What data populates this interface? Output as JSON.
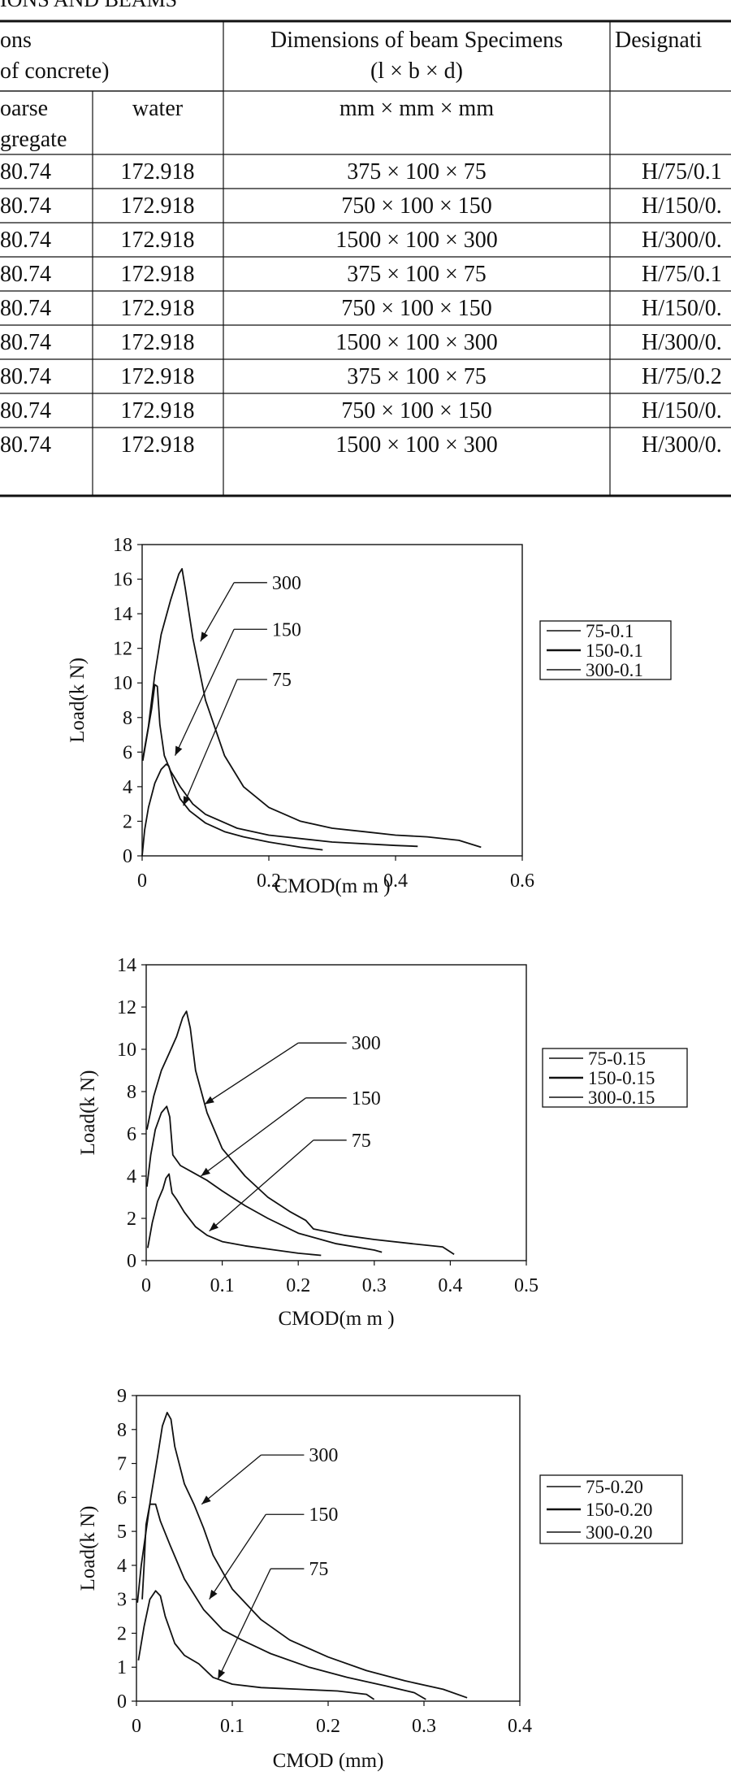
{
  "table": {
    "caption": "IONS AND BEAMS",
    "header1": {
      "proportions_a": "ons",
      "proportions_b": "of concrete)",
      "dimensions_a": "Dimensions of beam Specimens",
      "dimensions_b": "(l × b × d)",
      "designation": "Designati"
    },
    "header2": {
      "coarse_a": "oarse",
      "coarse_b": "gregate",
      "water": "water",
      "units": "mm × mm × mm"
    },
    "rows": [
      {
        "coarse": "80.74",
        "water": "172.918",
        "dims": "375 × 100 × 75",
        "designation": "H/75/0.1"
      },
      {
        "coarse": "80.74",
        "water": "172.918",
        "dims": "750 × 100 × 150",
        "designation": "H/150/0."
      },
      {
        "coarse": "80.74",
        "water": "172.918",
        "dims": "1500 × 100 × 300",
        "designation": "H/300/0."
      },
      {
        "coarse": "80.74",
        "water": "172.918",
        "dims": "375 × 100 × 75",
        "designation": "H/75/0.1"
      },
      {
        "coarse": "80.74",
        "water": "172.918",
        "dims": "750 × 100 × 150",
        "designation": "H/150/0."
      },
      {
        "coarse": "80.74",
        "water": "172.918",
        "dims": "1500 × 100 × 300",
        "designation": "H/300/0."
      },
      {
        "coarse": "80.74",
        "water": "172.918",
        "dims": "375 × 100 × 75",
        "designation": "H/75/0.2"
      },
      {
        "coarse": "80.74",
        "water": "172.918",
        "dims": "750 × 100 × 150",
        "designation": "H/150/0."
      },
      {
        "coarse": "80.74",
        "water": "172.918",
        "dims": "1500 × 100 × 300",
        "designation": "H/300/0."
      }
    ]
  },
  "chart_data": [
    {
      "type": "line",
      "xlabel": "CMOD(m m )",
      "ylabel": "Load(k N)",
      "xlim": [
        0,
        0.6
      ],
      "ylim": [
        0,
        18
      ],
      "xticks": [
        "0",
        "0.2",
        "0.4",
        "0.6"
      ],
      "yticks": [
        "0",
        "2",
        "4",
        "6",
        "8",
        "10",
        "12",
        "14",
        "16",
        "18"
      ],
      "grid": false,
      "legend_position": "right",
      "legend": [
        "75-0.1",
        "150-0.1",
        "300-0.1"
      ],
      "annotations": [
        {
          "text": "300",
          "target": [
            0.092,
            12.4
          ]
        },
        {
          "text": "150",
          "target": [
            0.052,
            5.8
          ]
        },
        {
          "text": "75",
          "target": [
            0.065,
            2.9
          ]
        }
      ],
      "series": [
        {
          "points": [
            [
              0,
              0
            ],
            [
              0.004,
              1.5
            ],
            [
              0.01,
              2.8
            ],
            [
              0.02,
              4.2
            ],
            [
              0.03,
              5.0
            ],
            [
              0.038,
              5.3
            ],
            [
              0.042,
              5.2
            ],
            [
              0.05,
              4.2
            ],
            [
              0.06,
              3.3
            ],
            [
              0.075,
              2.6
            ],
            [
              0.1,
              1.9
            ],
            [
              0.13,
              1.4
            ],
            [
              0.16,
              1.1
            ],
            [
              0.2,
              0.8
            ],
            [
              0.25,
              0.5
            ],
            [
              0.285,
              0.35
            ]
          ]
        },
        {
          "points": [
            [
              0.001,
              5.5
            ],
            [
              0.008,
              7.0
            ],
            [
              0.015,
              8.5
            ],
            [
              0.02,
              9.9
            ],
            [
              0.024,
              9.8
            ],
            [
              0.028,
              7.6
            ],
            [
              0.035,
              5.8
            ],
            [
              0.045,
              4.9
            ],
            [
              0.06,
              4.0
            ],
            [
              0.08,
              3.0
            ],
            [
              0.1,
              2.4
            ],
            [
              0.15,
              1.6
            ],
            [
              0.2,
              1.2
            ],
            [
              0.3,
              0.8
            ],
            [
              0.4,
              0.6
            ],
            [
              0.435,
              0.55
            ]
          ]
        },
        {
          "points": [
            [
              0.001,
              5.6
            ],
            [
              0.01,
              7.5
            ],
            [
              0.02,
              10.5
            ],
            [
              0.03,
              12.8
            ],
            [
              0.045,
              14.8
            ],
            [
              0.058,
              16.3
            ],
            [
              0.063,
              16.6
            ],
            [
              0.068,
              15.5
            ],
            [
              0.08,
              12.6
            ],
            [
              0.1,
              9.0
            ],
            [
              0.13,
              5.8
            ],
            [
              0.16,
              4.0
            ],
            [
              0.2,
              2.8
            ],
            [
              0.25,
              2.0
            ],
            [
              0.3,
              1.6
            ],
            [
              0.35,
              1.4
            ],
            [
              0.4,
              1.2
            ],
            [
              0.45,
              1.1
            ],
            [
              0.5,
              0.9
            ],
            [
              0.535,
              0.5
            ]
          ]
        }
      ]
    },
    {
      "type": "line",
      "xlabel": "CMOD(m m )",
      "ylabel": "Load(k N)",
      "xlim": [
        0,
        0.5
      ],
      "ylim": [
        0,
        14
      ],
      "xticks": [
        "0",
        "0.1",
        "0.2",
        "0.3",
        "0.4",
        "0.5"
      ],
      "yticks": [
        "0",
        "2",
        "4",
        "6",
        "8",
        "10",
        "12",
        "14"
      ],
      "grid": false,
      "legend_position": "right",
      "legend": [
        "75-0.15",
        "150-0.15",
        "300-0.15"
      ],
      "annotations": [
        {
          "text": "300",
          "target": [
            0.077,
            7.4
          ]
        },
        {
          "text": "150",
          "target": [
            0.072,
            4.0
          ]
        },
        {
          "text": "75",
          "target": [
            0.083,
            1.4
          ]
        }
      ],
      "series": [
        {
          "points": [
            [
              0.002,
              0.6
            ],
            [
              0.008,
              1.8
            ],
            [
              0.015,
              2.8
            ],
            [
              0.022,
              3.4
            ],
            [
              0.026,
              3.9
            ],
            [
              0.03,
              4.1
            ],
            [
              0.034,
              3.2
            ],
            [
              0.04,
              2.9
            ],
            [
              0.05,
              2.3
            ],
            [
              0.065,
              1.6
            ],
            [
              0.08,
              1.2
            ],
            [
              0.1,
              0.9
            ],
            [
              0.13,
              0.7
            ],
            [
              0.17,
              0.5
            ],
            [
              0.2,
              0.35
            ],
            [
              0.23,
              0.25
            ]
          ]
        },
        {
          "points": [
            [
              0.001,
              3.5
            ],
            [
              0.006,
              5.0
            ],
            [
              0.012,
              6.2
            ],
            [
              0.02,
              7.0
            ],
            [
              0.027,
              7.3
            ],
            [
              0.031,
              6.8
            ],
            [
              0.035,
              5.0
            ],
            [
              0.045,
              4.5
            ],
            [
              0.06,
              4.2
            ],
            [
              0.08,
              3.8
            ],
            [
              0.1,
              3.3
            ],
            [
              0.13,
              2.6
            ],
            [
              0.16,
              2.0
            ],
            [
              0.2,
              1.3
            ],
            [
              0.25,
              0.8
            ],
            [
              0.3,
              0.5
            ],
            [
              0.31,
              0.4
            ]
          ]
        },
        {
          "points": [
            [
              0.001,
              6.2
            ],
            [
              0.01,
              7.8
            ],
            [
              0.02,
              9.0
            ],
            [
              0.03,
              9.8
            ],
            [
              0.04,
              10.6
            ],
            [
              0.048,
              11.5
            ],
            [
              0.053,
              11.8
            ],
            [
              0.058,
              11.0
            ],
            [
              0.065,
              9.0
            ],
            [
              0.08,
              7.0
            ],
            [
              0.1,
              5.3
            ],
            [
              0.13,
              4.0
            ],
            [
              0.16,
              3.0
            ],
            [
              0.19,
              2.3
            ],
            [
              0.21,
              1.9
            ],
            [
              0.22,
              1.5
            ],
            [
              0.26,
              1.2
            ],
            [
              0.3,
              1.0
            ],
            [
              0.35,
              0.8
            ],
            [
              0.39,
              0.65
            ],
            [
              0.405,
              0.3
            ]
          ]
        }
      ]
    },
    {
      "type": "line",
      "xlabel": "CMOD (mm)",
      "ylabel": "Load(k N)",
      "xlim": [
        0,
        0.4
      ],
      "ylim": [
        0,
        9
      ],
      "xticks": [
        "0",
        "0.1",
        "0.2",
        "0.3",
        "0.4"
      ],
      "yticks": [
        "0",
        "1",
        "2",
        "3",
        "4",
        "5",
        "6",
        "7",
        "8",
        "9"
      ],
      "grid": false,
      "legend_position": "right",
      "legend": [
        "75-0.20",
        "150-0.20",
        "300-0.20"
      ],
      "annotations": [
        {
          "text": "300",
          "target": [
            0.068,
            5.8
          ]
        },
        {
          "text": "150",
          "target": [
            0.076,
            3.0
          ]
        },
        {
          "text": "75",
          "target": [
            0.085,
            0.65
          ]
        }
      ],
      "series": [
        {
          "points": [
            [
              0.002,
              1.2
            ],
            [
              0.008,
              2.2
            ],
            [
              0.014,
              3.0
            ],
            [
              0.02,
              3.25
            ],
            [
              0.025,
              3.1
            ],
            [
              0.03,
              2.5
            ],
            [
              0.04,
              1.7
            ],
            [
              0.05,
              1.35
            ],
            [
              0.065,
              1.1
            ],
            [
              0.08,
              0.7
            ],
            [
              0.1,
              0.5
            ],
            [
              0.13,
              0.4
            ],
            [
              0.17,
              0.35
            ],
            [
              0.21,
              0.3
            ],
            [
              0.24,
              0.2
            ],
            [
              0.248,
              0.05
            ]
          ]
        },
        {
          "points": [
            [
              0.006,
              3.0
            ],
            [
              0.008,
              4.0
            ],
            [
              0.01,
              5.2
            ],
            [
              0.014,
              5.8
            ],
            [
              0.02,
              5.8
            ],
            [
              0.025,
              5.3
            ],
            [
              0.035,
              4.6
            ],
            [
              0.05,
              3.6
            ],
            [
              0.07,
              2.7
            ],
            [
              0.09,
              2.1
            ],
            [
              0.11,
              1.8
            ],
            [
              0.14,
              1.4
            ],
            [
              0.18,
              1.0
            ],
            [
              0.22,
              0.7
            ],
            [
              0.26,
              0.45
            ],
            [
              0.29,
              0.25
            ],
            [
              0.302,
              0.05
            ]
          ]
        },
        {
          "points": [
            [
              0.001,
              2.9
            ],
            [
              0.005,
              4.0
            ],
            [
              0.01,
              5.0
            ],
            [
              0.015,
              6.0
            ],
            [
              0.022,
              7.2
            ],
            [
              0.027,
              8.1
            ],
            [
              0.032,
              8.5
            ],
            [
              0.036,
              8.3
            ],
            [
              0.04,
              7.5
            ],
            [
              0.05,
              6.4
            ],
            [
              0.06,
              5.8
            ],
            [
              0.07,
              5.1
            ],
            [
              0.08,
              4.3
            ],
            [
              0.1,
              3.3
            ],
            [
              0.13,
              2.4
            ],
            [
              0.16,
              1.8
            ],
            [
              0.2,
              1.3
            ],
            [
              0.24,
              0.9
            ],
            [
              0.28,
              0.6
            ],
            [
              0.32,
              0.35
            ],
            [
              0.345,
              0.1
            ]
          ]
        }
      ]
    }
  ]
}
